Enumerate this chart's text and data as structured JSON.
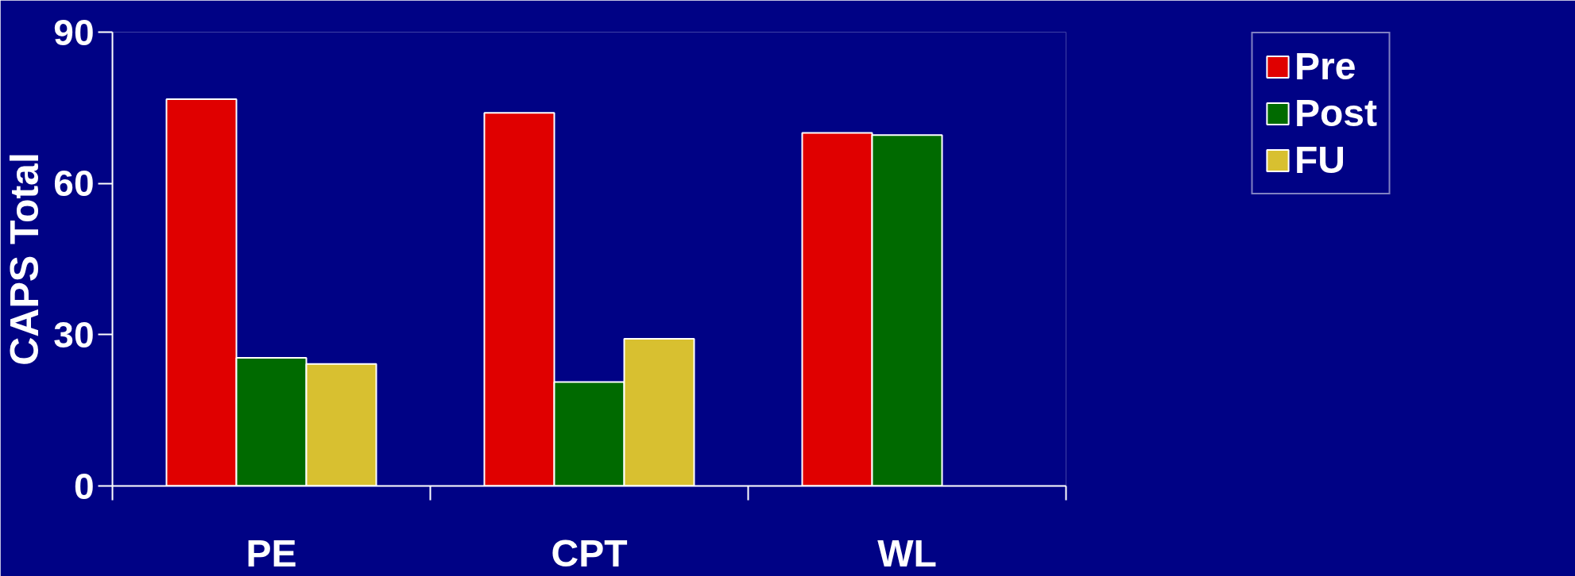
{
  "chart_data": {
    "type": "bar",
    "ylabel": "CAPS Total",
    "categories": [
      "PE",
      "CPT",
      "WL"
    ],
    "series": [
      {
        "name": "Pre",
        "color": "#e00000",
        "values": [
          76.7,
          74.0,
          70.0
        ]
      },
      {
        "name": "Post",
        "color": "#006a00",
        "values": [
          25.4,
          20.6,
          69.6
        ]
      },
      {
        "name": "FU",
        "color": "#d8c030",
        "values": [
          24.2,
          29.2,
          null
        ]
      }
    ],
    "ylim": [
      0,
      90
    ],
    "yticks": [
      0,
      30,
      60,
      90
    ],
    "grid": false,
    "legend": "top right"
  }
}
